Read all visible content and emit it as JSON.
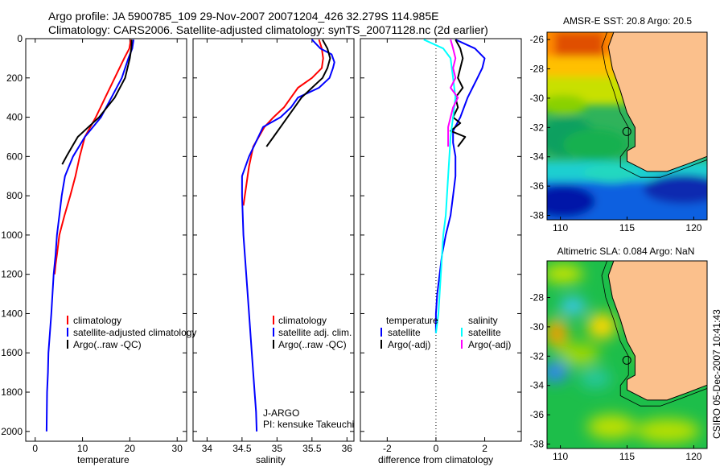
{
  "title_line1": "Argo profile: JA 5900785_109 29-Nov-2007 20071204_426 32.279S 114.985E",
  "title_line2": "Climatology: CARS2006. Satellite-adjusted climatology: synTS_20071128.nc (2d earlier)",
  "side_stamp": "CSIRO 05-Dec-2007 10:41:43",
  "chart_data": [
    {
      "type": "line",
      "panel": "temperature",
      "xlabel": "temperature",
      "xlim": [
        -2,
        32
      ],
      "ylim": [
        0,
        2050
      ],
      "y_reversed": true,
      "xticks": [
        0,
        10,
        20,
        30
      ],
      "yticks": [
        0,
        200,
        400,
        600,
        800,
        1000,
        1200,
        1400,
        1600,
        1800,
        2000
      ],
      "legend": [
        "climatology",
        "satellite-adjusted climatology",
        "Argo(..raw -QC)"
      ],
      "series": [
        {
          "name": "climatology",
          "color": "#ff0000",
          "x": [
            20.2,
            19.9,
            18.8,
            16.8,
            14.8,
            12.8,
            10.5,
            9.4,
            8.5,
            7.4,
            6.2,
            5.1,
            4.6,
            4.3,
            4.1
          ],
          "y": [
            5,
            50,
            100,
            200,
            300,
            400,
            500,
            600,
            700,
            800,
            900,
            1000,
            1100,
            1150,
            1200
          ]
        },
        {
          "name": "satellite-adjusted climatology",
          "color": "#0000ff",
          "x": [
            20.8,
            20.5,
            19.7,
            18.3,
            16.1,
            13.9,
            10.5,
            8.0,
            6.3,
            5.6,
            5.1,
            4.6,
            4.3,
            3.9,
            3.4,
            3.1,
            2.8,
            2.7,
            2.5,
            2.4
          ],
          "y": [
            5,
            50,
            100,
            200,
            300,
            400,
            500,
            600,
            700,
            800,
            900,
            1000,
            1100,
            1200,
            1400,
            1500,
            1600,
            1700,
            1800,
            2000
          ]
        },
        {
          "name": "Argo(..raw -QC)",
          "color": "#000000",
          "x": [
            20.4,
            20.3,
            20.0,
            19.0,
            16.8,
            13.5,
            10.8,
            9.0,
            7.8,
            6.6,
            5.7
          ],
          "y": [
            5,
            50,
            100,
            200,
            300,
            400,
            460,
            500,
            550,
            600,
            640
          ]
        }
      ]
    },
    {
      "type": "line",
      "panel": "salinity",
      "xlabel": "salinity",
      "xlim": [
        33.8,
        36.1
      ],
      "ylim": [
        0,
        2050
      ],
      "y_reversed": true,
      "xticks": [
        34,
        34.5,
        35,
        35.5,
        36
      ],
      "legend": [
        "climatology",
        "satellite adj. clim.",
        "Argo(..raw -QC)"
      ],
      "annotations": [
        "J-ARGO",
        "PI: kensuke Takeuchi"
      ],
      "series": [
        {
          "name": "climatology",
          "color": "#ff0000",
          "x": [
            35.6,
            35.64,
            35.66,
            35.64,
            35.5,
            35.3,
            35.2,
            35.1,
            34.95,
            34.82,
            34.66,
            34.6,
            34.58,
            34.56,
            34.54,
            34.52
          ],
          "y": [
            5,
            50,
            100,
            150,
            200,
            250,
            300,
            350,
            400,
            450,
            550,
            650,
            700,
            750,
            800,
            850
          ]
        },
        {
          "name": "satellite adj. clim.",
          "color": "#0000ff",
          "x": [
            35.5,
            35.62,
            35.78,
            35.82,
            35.8,
            35.75,
            35.6,
            35.3,
            35.2,
            35.05,
            34.8,
            34.6,
            34.5,
            34.5,
            34.52,
            34.56,
            34.6,
            34.64,
            34.68,
            34.7,
            34.71
          ],
          "y": [
            5,
            50,
            80,
            120,
            150,
            200,
            250,
            300,
            350,
            400,
            450,
            600,
            700,
            800,
            1000,
            1200,
            1400,
            1600,
            1800,
            1900,
            2000
          ]
        },
        {
          "name": "Argo(..raw -QC)",
          "color": "#000000",
          "x": [
            35.65,
            35.72,
            35.76,
            35.72,
            35.65,
            35.5,
            35.35,
            35.25,
            35.15,
            35.05,
            34.95,
            34.85
          ],
          "y": [
            5,
            50,
            100,
            150,
            200,
            250,
            300,
            350,
            400,
            450,
            500,
            550
          ]
        }
      ]
    },
    {
      "type": "line",
      "panel": "difference",
      "xlabel": "difference from climatology",
      "xlim": [
        -3.1,
        3.5
      ],
      "ylim": [
        0,
        2050
      ],
      "y_reversed": true,
      "xticks": [
        -2,
        0,
        2
      ],
      "legend": [
        "temperature",
        "satellite",
        "Argo(-adj)",
        "salinity",
        "satellite",
        "Argo(-adj)"
      ],
      "series": [
        {
          "name": "temperature satellite",
          "color": "#0000ff",
          "x": [
            0.8,
            1.6,
            2.0,
            1.9,
            1.7,
            1.5,
            1.3,
            1.0,
            0.7,
            0.7,
            0.8,
            0.8,
            0.7,
            0.6,
            0.4,
            0.25,
            0.15,
            0.05,
            0.0,
            0.0
          ],
          "y": [
            5,
            50,
            100,
            150,
            200,
            250,
            300,
            400,
            470,
            530,
            600,
            700,
            800,
            900,
            1000,
            1100,
            1200,
            1300,
            1400,
            1500
          ]
        },
        {
          "name": "temperature Argo(-adj)",
          "color": "#000000",
          "x": [
            0.8,
            1.0,
            1.1,
            1.0,
            0.9,
            1.1,
            0.8,
            0.9,
            0.7,
            1.0,
            0.6,
            1.2,
            0.9
          ],
          "y": [
            5,
            50,
            100,
            150,
            200,
            250,
            300,
            350,
            400,
            430,
            470,
            500,
            550
          ]
        },
        {
          "name": "salinity satellite",
          "color": "#00ffff",
          "x": [
            -0.5,
            0.3,
            0.6,
            0.7,
            0.8,
            0.7,
            0.6,
            0.5,
            0.4,
            0.3,
            0.2,
            0.1,
            0.0
          ],
          "y": [
            5,
            50,
            100,
            200,
            300,
            400,
            500,
            700,
            900,
            1000,
            1200,
            1400,
            1500
          ]
        },
        {
          "name": "salinity Argo(-adj)",
          "color": "#ff00ff",
          "x": [
            0.6,
            0.7,
            0.8,
            0.7,
            0.8,
            0.6,
            0.9,
            0.7,
            0.6,
            0.5,
            0.5
          ],
          "y": [
            5,
            50,
            100,
            150,
            200,
            250,
            300,
            350,
            400,
            450,
            550
          ]
        }
      ]
    },
    {
      "type": "heatmap",
      "panel": "map-sst",
      "title": "AMSR-E SST: 20.8 Argo: 20.5",
      "xlim": [
        109,
        121
      ],
      "ylim": [
        -38.3,
        -25.5
      ],
      "xticks": [
        110,
        115,
        120
      ],
      "yticks": [
        -26,
        -28,
        -30,
        -32,
        -34,
        -36,
        -38
      ],
      "argo_position": [
        114.985,
        -32.279
      ]
    },
    {
      "type": "heatmap",
      "panel": "map-sla",
      "title": "Altimetric SLA: 0.084 Argo: NaN",
      "xlim": [
        109,
        121
      ],
      "ylim": [
        -38.3,
        -25.5
      ],
      "xticks": [
        110,
        115,
        120
      ],
      "yticks": [
        -28,
        -30,
        -32,
        -34,
        -36,
        -38
      ],
      "argo_position": [
        114.985,
        -32.279
      ]
    }
  ]
}
